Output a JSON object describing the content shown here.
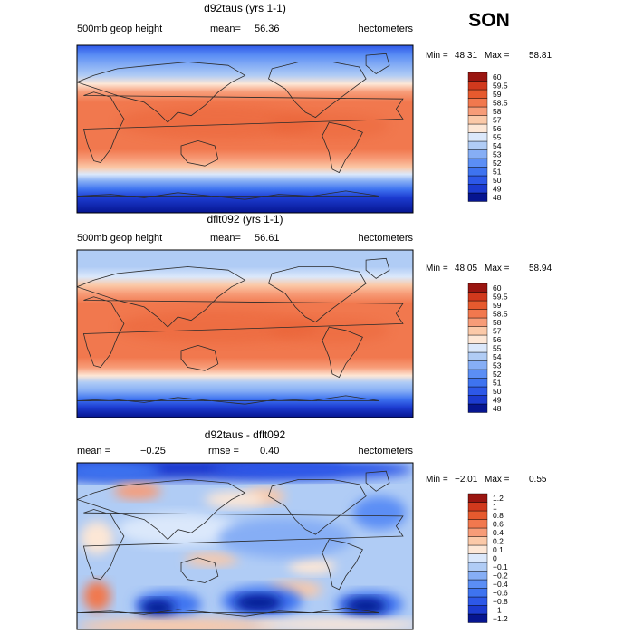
{
  "season": "SON",
  "colors": {
    "land": "#2a2a2a",
    "frame": "#000000"
  },
  "chart_data": [
    {
      "type": "heatmap",
      "title": "d92taus (yrs 1-1)",
      "field_label": "500mb geop height",
      "stat_left": "mean=",
      "stat_left_value": "56.36",
      "stat_mid": "",
      "stat_mid_value": "",
      "units": "hectometers",
      "min_label": "Min =",
      "min": "48.31",
      "max_label": "Max =",
      "max": "58.81",
      "colorbar_levels": [
        "48",
        "49",
        "50",
        "51",
        "52",
        "53",
        "54",
        "55",
        "56",
        "57",
        "58",
        "58.5",
        "59",
        "59.5",
        "60"
      ],
      "colorbar_colors": [
        "#061590",
        "#1c3bd0",
        "#2d58e8",
        "#3e73f0",
        "#5b8ef5",
        "#86aef5",
        "#b0ccf5",
        "#dbe8fb",
        "#fde7d6",
        "#fbc9a8",
        "#f79c78",
        "#f1784e",
        "#e65a2e",
        "#d1391d",
        "#9a1510"
      ],
      "field_type": "height"
    },
    {
      "type": "heatmap",
      "title": "dflt092 (yrs 1-1)",
      "field_label": "500mb geop height",
      "stat_left": "mean=",
      "stat_left_value": "56.61",
      "stat_mid": "",
      "stat_mid_value": "",
      "units": "hectometers",
      "min_label": "Min =",
      "min": "48.05",
      "max_label": "Max =",
      "max": "58.94",
      "colorbar_levels": [
        "48",
        "49",
        "50",
        "51",
        "52",
        "53",
        "54",
        "55",
        "56",
        "57",
        "58",
        "58.5",
        "59",
        "59.5",
        "60"
      ],
      "colorbar_colors": [
        "#061590",
        "#1c3bd0",
        "#2d58e8",
        "#3e73f0",
        "#5b8ef5",
        "#86aef5",
        "#b0ccf5",
        "#dbe8fb",
        "#fde7d6",
        "#fbc9a8",
        "#f79c78",
        "#f1784e",
        "#e65a2e",
        "#d1391d",
        "#9a1510"
      ],
      "field_type": "height"
    },
    {
      "type": "heatmap",
      "title": "d92taus - dflt092",
      "field_label": "",
      "stat_left": "mean =",
      "stat_left_value": "−0.25",
      "stat_mid": "rmse =",
      "stat_mid_value": "0.40",
      "units": "hectometers",
      "min_label": "Min =",
      "min": "−2.01",
      "max_label": "Max =",
      "max": "0.55",
      "colorbar_levels": [
        "−1.2",
        "−1",
        "−0.8",
        "−0.6",
        "−0.4",
        "−0.2",
        "−0.1",
        "0",
        "0.1",
        "0.2",
        "0.4",
        "0.6",
        "0.8",
        "1",
        "1.2"
      ],
      "colorbar_colors": [
        "#061590",
        "#1c3bd0",
        "#2d58e8",
        "#3e73f0",
        "#5b8ef5",
        "#86aef5",
        "#b0ccf5",
        "#dbe8fb",
        "#fde7d6",
        "#fbc9a8",
        "#f79c78",
        "#f1784e",
        "#e65a2e",
        "#d1391d",
        "#9a1510"
      ],
      "field_type": "diff"
    }
  ]
}
